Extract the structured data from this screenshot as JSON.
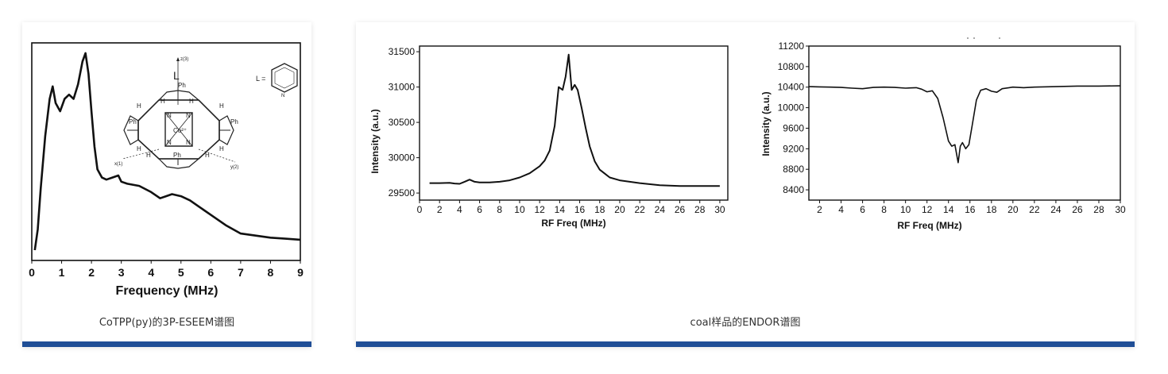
{
  "cards": [
    {
      "caption": "CoTPP(py)的3P-ESEEM谱图"
    },
    {
      "caption": "coal样品的ENDOR谱图"
    }
  ],
  "colors": {
    "accent": "#1f4e96",
    "line": "#111111"
  },
  "chart_data": [
    {
      "type": "line",
      "xlabel": "Frequency (MHz)",
      "ylabel": "",
      "xlim": [
        0,
        9
      ],
      "xticks": [
        "0",
        "1",
        "2",
        "3",
        "4",
        "5",
        "6",
        "7",
        "8",
        "9"
      ],
      "grid": false,
      "inset": {
        "molecule_labels": [
          "L",
          "L =",
          "Ph",
          "Ph",
          "Ph",
          "Ph",
          "H",
          "H",
          "H",
          "H",
          "H",
          "H",
          "H",
          "H",
          "N",
          "N",
          "N",
          "N",
          "Co²⁺",
          "z(3)",
          "x(1)",
          "y(2)",
          "N"
        ]
      },
      "series": [
        {
          "x": [
            0.1,
            0.2,
            0.3,
            0.45,
            0.6,
            0.7,
            0.8,
            0.95,
            1.1,
            1.25,
            1.4,
            1.55,
            1.7,
            1.8,
            1.9,
            2.0,
            2.1,
            2.2,
            2.35,
            2.5,
            2.7,
            2.9,
            3.0,
            3.2,
            3.6,
            4.0,
            4.3,
            4.5,
            4.7,
            5.0,
            5.3,
            5.6,
            6.0,
            6.5,
            7.0,
            7.5,
            8.0,
            8.5,
            9.0
          ],
          "y": [
            0.05,
            0.15,
            0.35,
            0.6,
            0.78,
            0.84,
            0.76,
            0.72,
            0.78,
            0.8,
            0.78,
            0.85,
            0.96,
            1.0,
            0.9,
            0.72,
            0.55,
            0.44,
            0.4,
            0.39,
            0.4,
            0.41,
            0.38,
            0.37,
            0.36,
            0.33,
            0.3,
            0.31,
            0.32,
            0.31,
            0.29,
            0.26,
            0.22,
            0.17,
            0.13,
            0.12,
            0.11,
            0.105,
            0.1
          ]
        }
      ]
    },
    {
      "type": "line",
      "xlabel": "RF Freq (MHz)",
      "ylabel": "Intensity (a.u.)",
      "xlim": [
        0,
        30.8
      ],
      "ylim": [
        29400,
        31580
      ],
      "xticks": [
        "0",
        "2",
        "4",
        "6",
        "8",
        "10",
        "12",
        "14",
        "16",
        "18",
        "20",
        "22",
        "24",
        "26",
        "28",
        "30"
      ],
      "yticks": [
        "29500",
        "30000",
        "30500",
        "31000",
        "31500"
      ],
      "grid": false,
      "series": [
        {
          "x": [
            1,
            2,
            3,
            3.5,
            4,
            4.5,
            5,
            5.5,
            6,
            7,
            8,
            9,
            10,
            11,
            12,
            12.5,
            13,
            13.5,
            13.9,
            14.3,
            14.6,
            14.9,
            15.2,
            15.5,
            15.8,
            16.2,
            16.6,
            17,
            17.5,
            18,
            19,
            20,
            21,
            22,
            24,
            26,
            28,
            30
          ],
          "y": [
            29640,
            29640,
            29645,
            29635,
            29630,
            29660,
            29690,
            29660,
            29650,
            29650,
            29660,
            29680,
            29720,
            29780,
            29880,
            29960,
            30100,
            30450,
            31000,
            30960,
            31150,
            31460,
            30960,
            31030,
            30960,
            30700,
            30420,
            30160,
            29950,
            29830,
            29720,
            29680,
            29660,
            29640,
            29610,
            29600,
            29600,
            29600
          ]
        }
      ]
    },
    {
      "type": "line",
      "xlabel": "RF Freq (MHz)",
      "ylabel": "Intensity (a.u.)",
      "xlim": [
        1,
        30
      ],
      "ylim": [
        8200,
        11200
      ],
      "xticks": [
        "2",
        "4",
        "6",
        "8",
        "10",
        "12",
        "14",
        "16",
        "18",
        "20",
        "22",
        "24",
        "26",
        "28",
        "30"
      ],
      "yticks": [
        "8400",
        "8800",
        "9200",
        "9600",
        "10000",
        "10400",
        "10800",
        "11200"
      ],
      "grid": false,
      "series": [
        {
          "x": [
            1,
            2,
            3,
            4,
            5,
            6,
            7,
            8,
            9,
            10,
            11,
            11.5,
            12,
            12.5,
            13,
            13.5,
            14,
            14.3,
            14.6,
            14.9,
            15.1,
            15.3,
            15.6,
            15.9,
            16.2,
            16.6,
            17,
            17.5,
            18,
            18.5,
            19,
            20,
            21,
            22,
            24,
            26,
            28,
            30
          ],
          "y": [
            10410,
            10405,
            10400,
            10395,
            10380,
            10370,
            10395,
            10400,
            10395,
            10380,
            10390,
            10360,
            10310,
            10330,
            10180,
            9800,
            9350,
            9250,
            9280,
            8930,
            9250,
            9320,
            9200,
            9280,
            9650,
            10150,
            10340,
            10370,
            10320,
            10300,
            10370,
            10400,
            10390,
            10400,
            10410,
            10420,
            10420,
            10425
          ]
        }
      ]
    }
  ]
}
